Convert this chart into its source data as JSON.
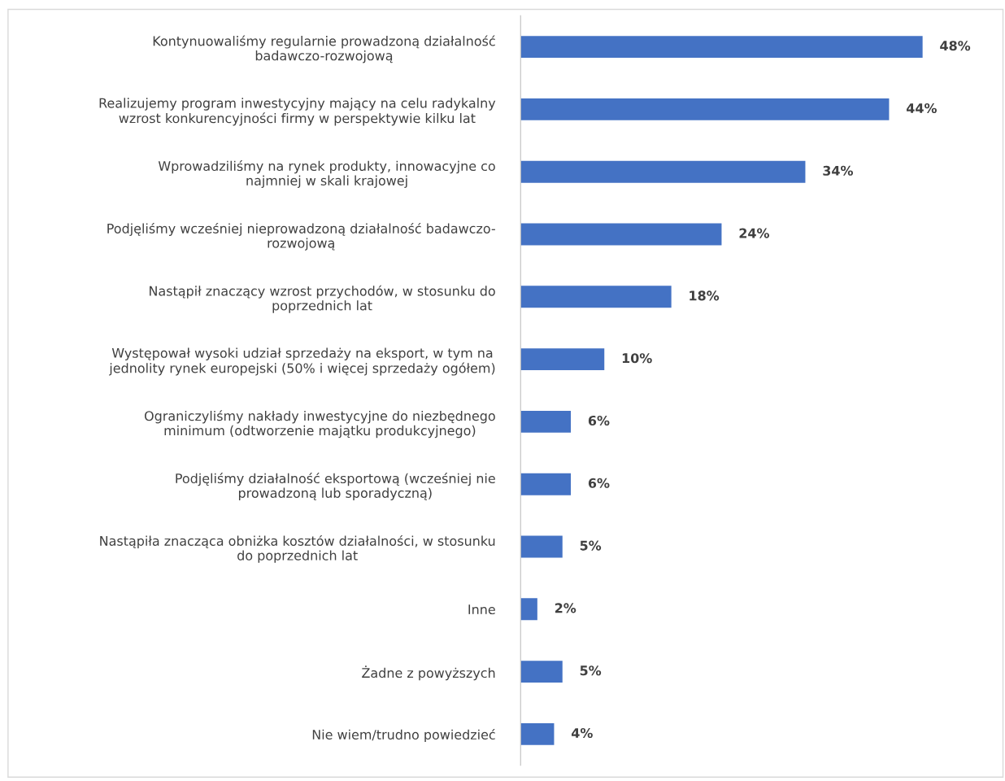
{
  "chart_data": {
    "type": "bar",
    "orientation": "horizontal",
    "color": "#4472c4",
    "categories": [
      "Kontynuowaliśmy regularnie prowadzoną działalność\nbadawczo-rozwojową",
      "Realizujemy program inwestycyjny mający na celu radykalny\nwzrost konkurencyjności firmy w perspektywie kilku lat",
      "Wprowadziliśmy na rynek produkty, innowacyjne co\nnajmniej w skali krajowej",
      "Podjęliśmy wcześniej nieprowadzoną działalność badawczo-\nrozwojową",
      "Nastąpił znaczący wzrost przychodów, w stosunku do\npoprzednich lat",
      "Występował wysoki udział sprzedaży na eksport, w tym na\njednolity rynek europejski (50% i więcej sprzedaży ogółem)",
      "Ograniczyliśmy nakłady inwestycyjne do niezbędnego\nminimum (odtworzenie majątku produkcyjnego)",
      "Podjęliśmy działalność eksportową (wcześniej nie\nprowadzoną lub sporadyczną)",
      "Nastąpiła znacząca obniżka kosztów działalności, w stosunku\ndo poprzednich lat",
      "Inne",
      "Żadne z powyższych",
      "Nie wiem/trudno powiedzieć"
    ],
    "values": [
      48,
      44,
      34,
      24,
      18,
      10,
      6,
      6,
      5,
      2,
      5,
      4
    ],
    "value_labels": [
      "48%",
      "44%",
      "34%",
      "24%",
      "18%",
      "10%",
      "6%",
      "6%",
      "5%",
      "2%",
      "5%",
      "4%"
    ],
    "grid": false,
    "legend": false
  }
}
